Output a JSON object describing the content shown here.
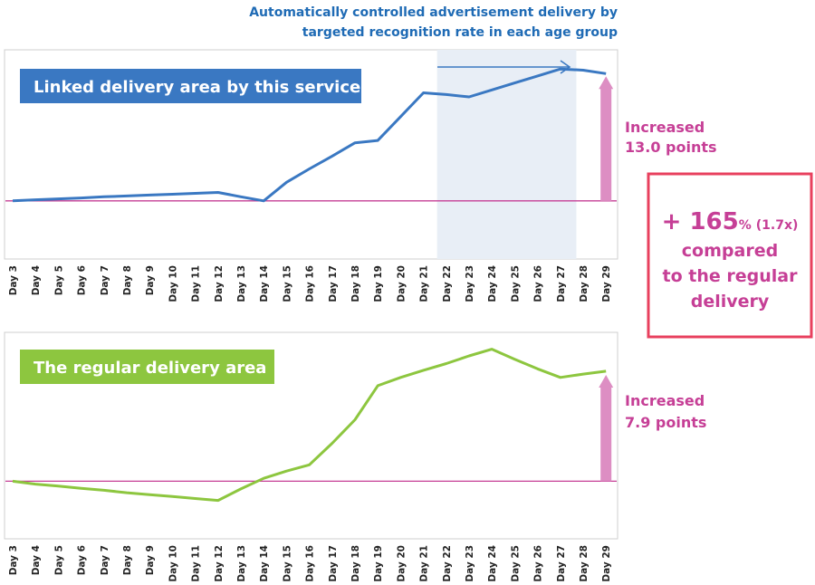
{
  "header": {
    "line1": "Automatically controlled advertisement delivery by",
    "line2": "targeted recognition rate in each age group"
  },
  "comparison": {
    "plus": "+ 165",
    "percent": "%",
    "ratio": "(1.7x)",
    "line2": "compared",
    "line3": "to the regular",
    "line4": "delivery"
  },
  "colors": {
    "linked": "#3a78c2",
    "regular": "#8dc63f",
    "accent": "#c63f96",
    "arrow_fill": "#dd8ec3",
    "highlight": "#e8eef6",
    "border_red": "#e8405e"
  },
  "chart_data": [
    {
      "type": "line",
      "title": "Linked delivery area by this service",
      "categories": [
        "Day 3",
        "Day 4",
        "Day 5",
        "Day 6",
        "Day 7",
        "Day 8",
        "Day 9",
        "Day 10",
        "Day 11",
        "Day 12",
        "Day 13",
        "Day 14",
        "Day 15",
        "Day 16",
        "Day 17",
        "Day 18",
        "Day 19",
        "Day 20",
        "Day 21",
        "Day 22",
        "Day 23",
        "Day 24",
        "Day 25",
        "Day 26",
        "Day 27",
        "Day 28",
        "Day 29"
      ],
      "values": [
        0,
        0.2,
        0.35,
        0.5,
        0.7,
        0.85,
        1.0,
        1.15,
        1.3,
        1.45,
        0.7,
        0,
        3.2,
        5.5,
        7.7,
        10.0,
        10.4,
        14.5,
        18.6,
        18.3,
        17.9,
        19.1,
        20.3,
        21.5,
        22.7,
        22.5,
        21.9
      ],
      "highlight_range": [
        "Day 22",
        "Day 28"
      ],
      "annotation_line1": "Increased",
      "annotation_line2": "13.0 points",
      "ylim": [
        -10,
        26
      ],
      "xlabel": "",
      "ylabel": "",
      "grid": false
    },
    {
      "type": "line",
      "title": "The regular delivery area",
      "categories": [
        "Day 3",
        "Day 4",
        "Day 5",
        "Day 6",
        "Day 7",
        "Day 8",
        "Day 9",
        "Day 10",
        "Day 11",
        "Day 12",
        "Day 13",
        "Day 14",
        "Day 15",
        "Day 16",
        "Day 17",
        "Day 18",
        "Day 19",
        "Day 20",
        "Day 21",
        "Day 22",
        "Day 23",
        "Day 24",
        "Day 25",
        "Day 26",
        "Day 27",
        "Day 28",
        "Day 29"
      ],
      "values": [
        0,
        -0.6,
        -1.0,
        -1.5,
        -1.9,
        -2.4,
        -2.8,
        -3.2,
        -3.6,
        -4.0,
        -1.6,
        0.6,
        2.1,
        3.4,
        7.9,
        12.8,
        19.9,
        21.6,
        23.1,
        24.5,
        26.1,
        27.5,
        25.4,
        23.4,
        21.6,
        22.3,
        22.9
      ],
      "annotation_line1": "Increased",
      "annotation_line2": "7.9 points",
      "ylim": [
        -12,
        31
      ],
      "xlabel": "",
      "ylabel": "",
      "grid": false
    }
  ]
}
